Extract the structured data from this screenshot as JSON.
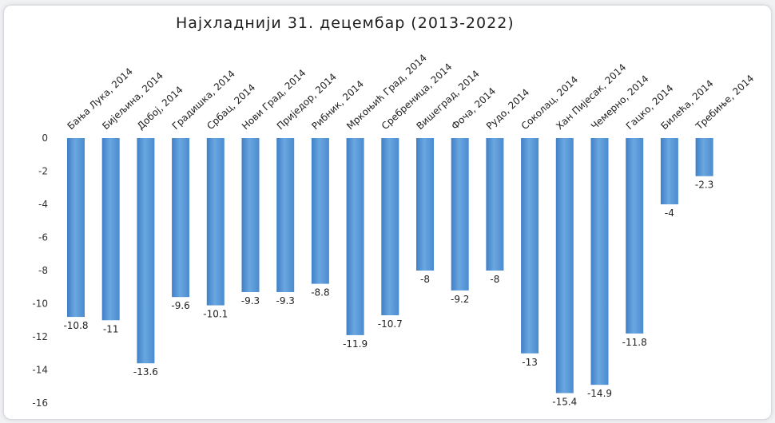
{
  "chart_data": {
    "type": "bar",
    "title": "Најхладнији 31. децембар (2013-2022)",
    "xlabel": "",
    "ylabel": "",
    "ylim": [
      -16,
      0
    ],
    "yticks": [
      0,
      -2,
      -4,
      -6,
      -8,
      -10,
      -12,
      -14,
      -16
    ],
    "grid": false,
    "bar_color": "#5b9bd5",
    "categories": [
      "Бања Лука, 2014",
      "Бијељина, 2014",
      "Добој, 2014",
      "Градишка, 2014",
      "Србац, 2014",
      "Нови Град, 2014",
      "Приједор, 2014",
      "Рибник, 2014",
      "Мркоњић Град, 2014",
      "Сребреница, 2014",
      "Вишеград, 2014",
      "Фоча, 2014",
      "Рудо, 2014",
      "Соколац, 2014",
      "Хан Пијесак, 2014",
      "Чемерно, 2014",
      "Гацко, 2014",
      "Билећа, 2014",
      "Требиње, 2014"
    ],
    "values": [
      -10.8,
      -11,
      -13.6,
      -9.6,
      -10.1,
      -9.3,
      -9.3,
      -8.8,
      -11.9,
      -10.7,
      -8,
      -9.2,
      -8,
      -13,
      -15.4,
      -14.9,
      -11.8,
      -4,
      -2.3
    ],
    "data_labels": [
      "-10.8",
      "-11",
      "-13.6",
      "-9.6",
      "-10.1",
      "-9.3",
      "-9.3",
      "-8.8",
      "-11.9",
      "-10.7",
      "-8",
      "-9.2",
      "-8",
      "-13",
      "-15.4",
      "-14.9",
      "-11.8",
      "-4",
      "-2.3"
    ]
  }
}
